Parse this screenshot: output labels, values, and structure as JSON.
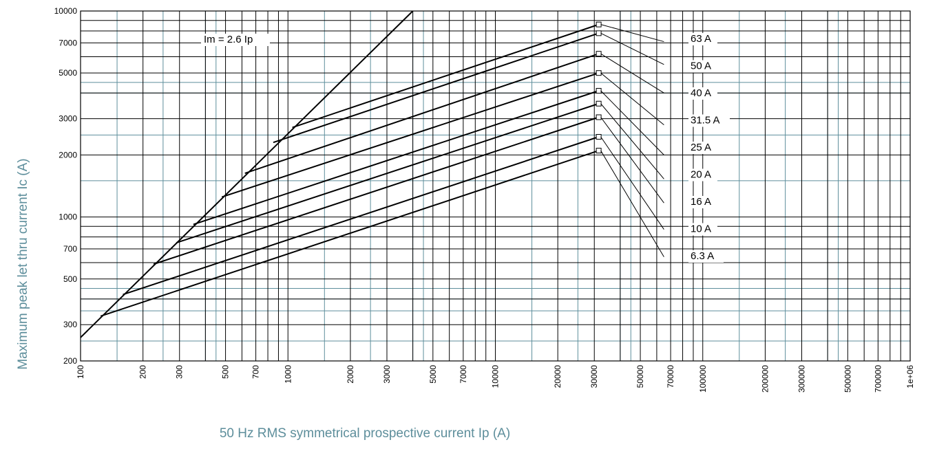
{
  "chart_data": {
    "type": "line",
    "title": "",
    "xlabel": "50 Hz RMS symmetrical prospective current Ip (A)",
    "ylabel": "Maximum peak let thru current Ic (A)",
    "xscale": "log",
    "yscale": "log",
    "xlim": [
      100,
      1000000
    ],
    "ylim": [
      200,
      10000
    ],
    "grid": true,
    "x_ticks": [
      "100",
      "200",
      "300",
      "500",
      "700",
      "1000",
      "2000",
      "3000",
      "5000",
      "7000",
      "10000",
      "20000",
      "30000",
      "50000",
      "70000",
      "100000",
      "200000",
      "300000",
      "500000",
      "700000",
      "1e+06"
    ],
    "y_ticks": [
      "200",
      "300",
      "500",
      "700",
      "1000",
      "2000",
      "3000",
      "5000",
      "7000",
      "10000"
    ],
    "reference_line": {
      "label": "Im = 2.6 Ip",
      "points": [
        [
          100,
          260
        ],
        [
          4000,
          10400
        ]
      ]
    },
    "series": [
      {
        "name": "63 A",
        "points": [
          [
            1050,
            2720
          ],
          [
            31500,
            8600
          ]
        ],
        "label_anchor": [
          65000,
          7100
        ]
      },
      {
        "name": "50 A",
        "points": [
          [
            850,
            2300
          ],
          [
            31500,
            7800
          ]
        ],
        "label_anchor": [
          65000,
          5500
        ]
      },
      {
        "name": "40 A",
        "points": [
          [
            620,
            1630
          ],
          [
            31500,
            6200
          ]
        ],
        "label_anchor": [
          65000,
          4000
        ]
      },
      {
        "name": "31.5 A",
        "points": [
          [
            480,
            1250
          ],
          [
            31500,
            5000
          ]
        ],
        "label_anchor": [
          65000,
          2800
        ]
      },
      {
        "name": "25 A",
        "points": [
          [
            350,
            920
          ],
          [
            31500,
            4100
          ]
        ],
        "label_anchor": [
          65000,
          2000
        ]
      },
      {
        "name": "20 A",
        "points": [
          [
            290,
            750
          ],
          [
            31500,
            3550
          ]
        ],
        "label_anchor": [
          65000,
          1530
        ]
      },
      {
        "name": "16 A",
        "points": [
          [
            225,
            590
          ],
          [
            31500,
            3050
          ]
        ],
        "label_anchor": [
          65000,
          1170
        ]
      },
      {
        "name": "10 A",
        "points": [
          [
            160,
            420
          ],
          [
            31500,
            2450
          ]
        ],
        "label_anchor": [
          65000,
          870
        ]
      },
      {
        "name": "6.3 A",
        "points": [
          [
            125,
            330
          ],
          [
            31500,
            2100
          ]
        ],
        "label_anchor": [
          65000,
          640
        ]
      }
    ]
  },
  "colors": {
    "major_grid": "#000000",
    "minor_grid": "#5d8e9b",
    "curve": "#000000",
    "axis_label": "#5d8e9b"
  }
}
